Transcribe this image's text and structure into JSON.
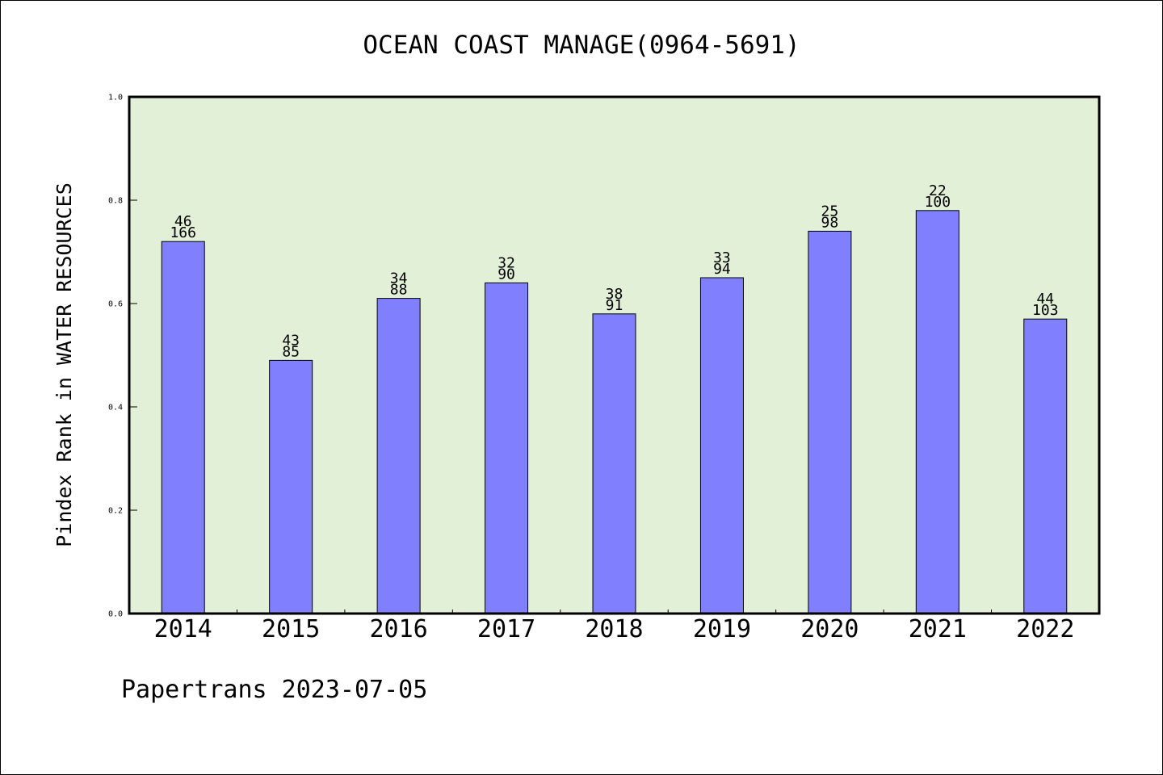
{
  "chart_data": {
    "type": "bar",
    "title": "OCEAN COAST MANAGE(0964-5691)",
    "ylabel": "Pindex Rank in WATER RESOURCES",
    "xlabel": "",
    "footer": "Papertrans 2023-07-05",
    "categories": [
      "2014",
      "2015",
      "2016",
      "2017",
      "2018",
      "2019",
      "2020",
      "2021",
      "2022"
    ],
    "values": [
      0.72,
      0.49,
      0.61,
      0.64,
      0.58,
      0.65,
      0.74,
      0.78,
      0.57
    ],
    "labels_top": [
      "46",
      "43",
      "34",
      "32",
      "38",
      "33",
      "25",
      "22",
      "44"
    ],
    "labels_bottom": [
      "166",
      "85",
      "88",
      "90",
      "91",
      "94",
      "98",
      "100",
      "103"
    ],
    "ylim": [
      0.0,
      1.0
    ],
    "yticks": [
      "0.0",
      "0.2",
      "0.4",
      "0.6",
      "0.8",
      "1.0"
    ],
    "grid": false,
    "colors": {
      "bar": "#8080ff",
      "plot_background": "#e2f0d8",
      "axis": "#000000"
    }
  }
}
